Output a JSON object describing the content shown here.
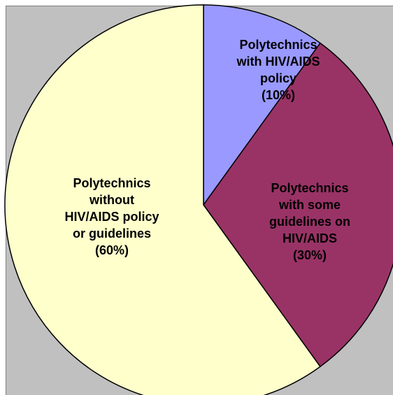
{
  "chart_data": {
    "type": "pie",
    "categories": [
      "Polytechnics with HIV/AIDS policy",
      "Polytechnics with some guidelines on HIV/AIDS",
      "Polytechnics without HIV/AIDS policy or guidelines"
    ],
    "values": [
      10,
      30,
      60
    ],
    "value_labels": [
      "(10%)",
      "(30%)",
      "(60%)"
    ],
    "colors": [
      "#9999ff",
      "#993366",
      "#ffffcc"
    ]
  }
}
